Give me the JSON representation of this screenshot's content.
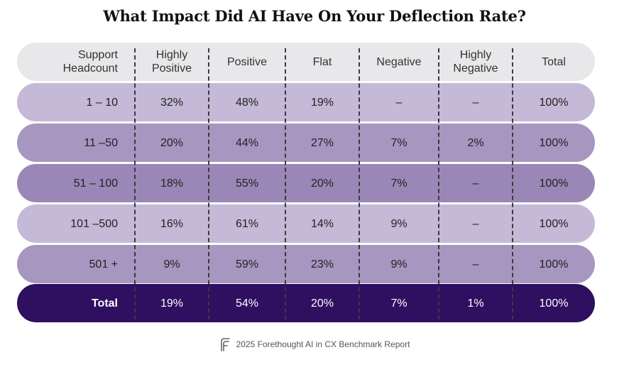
{
  "title": "What Impact Did AI Have On Your Deflection Rate?",
  "footer": {
    "text": "2025 Forethought AI in CX Benchmark Report",
    "icon": "forethought-logo-icon"
  },
  "colors": {
    "header": "#e8e8ea",
    "light": "#c4b9d6",
    "mid": "#a796c0",
    "dark": "#9a87b7",
    "total": "#2e0f60"
  },
  "chart_data": {
    "type": "table",
    "title": "What Impact Did AI Have On Your Deflection Rate?",
    "columns": [
      "Support Headcount",
      "Highly Positive",
      "Positive",
      "Flat",
      "Negative",
      "Highly Negative",
      "Total"
    ],
    "rows": [
      {
        "label": "1 – 10",
        "values": [
          "32%",
          "48%",
          "19%",
          "–",
          "–",
          "100%"
        ],
        "shade": "light"
      },
      {
        "label": "11 –50",
        "values": [
          "20%",
          "44%",
          "27%",
          "7%",
          "2%",
          "100%"
        ],
        "shade": "mid"
      },
      {
        "label": "51 – 100",
        "values": [
          "18%",
          "55%",
          "20%",
          "7%",
          "–",
          "100%"
        ],
        "shade": "dark"
      },
      {
        "label": "101 –500",
        "values": [
          "16%",
          "61%",
          "14%",
          "9%",
          "–",
          "100%"
        ],
        "shade": "light"
      },
      {
        "label": "501 +",
        "values": [
          "9%",
          "59%",
          "23%",
          "9%",
          "–",
          "100%"
        ],
        "shade": "mid"
      },
      {
        "label": "Total",
        "values": [
          "19%",
          "54%",
          "20%",
          "7%",
          "1%",
          "100%"
        ],
        "shade": "total"
      }
    ]
  }
}
